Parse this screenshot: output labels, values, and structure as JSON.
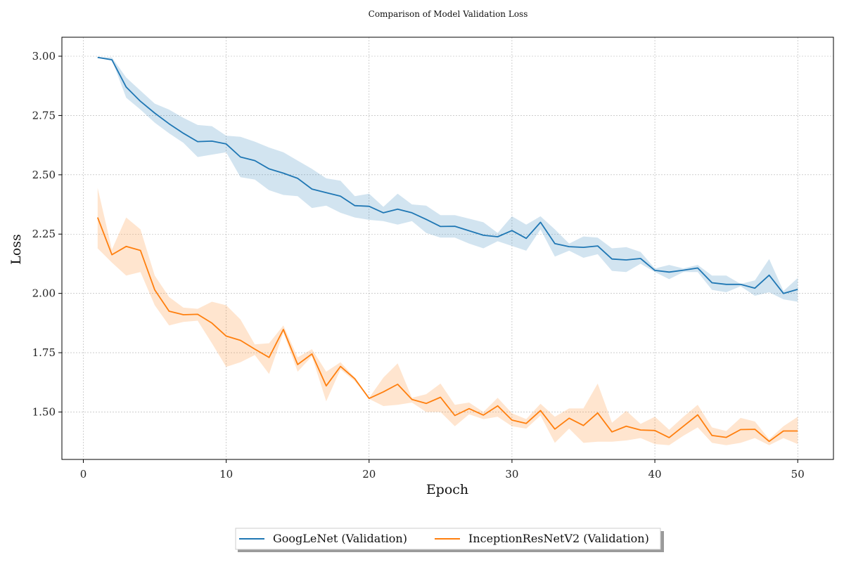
{
  "chart_data": {
    "type": "line",
    "title": "Comparison of Model Validation Loss",
    "xlabel": "Epoch",
    "ylabel": "Loss",
    "xlim": [
      -1.5,
      52.5
    ],
    "ylim": [
      1.3,
      3.08
    ],
    "x_ticks": [
      "0",
      "10",
      "20",
      "30",
      "40",
      "50"
    ],
    "y_ticks": [
      "1.50",
      "1.75",
      "2.00",
      "2.25",
      "2.50",
      "2.75",
      "3.00"
    ],
    "grid": true,
    "legend_position": "bottom-center",
    "x": [
      1,
      2,
      3,
      4,
      5,
      6,
      7,
      8,
      9,
      10,
      11,
      12,
      13,
      14,
      15,
      16,
      17,
      18,
      19,
      20,
      21,
      22,
      23,
      24,
      25,
      26,
      27,
      28,
      29,
      30,
      31,
      32,
      33,
      34,
      35,
      36,
      37,
      38,
      39,
      40,
      41,
      42,
      43,
      44,
      45,
      46,
      47,
      48,
      49,
      50
    ],
    "series": [
      {
        "name": "GoogLeNet (Validation)",
        "color": "#1f77b4",
        "values": [
          2.995,
          2.985,
          2.87,
          2.81,
          2.76,
          2.715,
          2.675,
          2.64,
          2.642,
          2.63,
          2.575,
          2.56,
          2.525,
          2.507,
          2.485,
          2.44,
          2.425,
          2.41,
          2.37,
          2.367,
          2.34,
          2.355,
          2.34,
          2.312,
          2.282,
          2.283,
          2.264,
          2.245,
          2.239,
          2.265,
          2.232,
          2.3,
          2.21,
          2.197,
          2.194,
          2.2,
          2.145,
          2.141,
          2.147,
          2.097,
          2.09,
          2.098,
          2.107,
          2.045,
          2.038,
          2.038,
          2.022,
          2.077,
          2.0,
          2.017
        ],
        "lower": [
          2.995,
          2.985,
          2.825,
          2.775,
          2.72,
          2.675,
          2.635,
          2.575,
          2.585,
          2.595,
          2.49,
          2.48,
          2.435,
          2.415,
          2.41,
          2.36,
          2.37,
          2.34,
          2.32,
          2.31,
          2.305,
          2.29,
          2.305,
          2.255,
          2.235,
          2.235,
          2.21,
          2.19,
          2.22,
          2.2,
          2.18,
          2.27,
          2.155,
          2.18,
          2.15,
          2.165,
          2.095,
          2.09,
          2.125,
          2.09,
          2.06,
          2.09,
          2.09,
          2.015,
          2.005,
          2.03,
          1.99,
          2.005,
          1.975,
          1.965
        ],
        "upper": [
          2.995,
          2.995,
          2.91,
          2.855,
          2.8,
          2.775,
          2.74,
          2.71,
          2.705,
          2.665,
          2.66,
          2.64,
          2.615,
          2.595,
          2.56,
          2.525,
          2.485,
          2.475,
          2.41,
          2.42,
          2.365,
          2.42,
          2.375,
          2.37,
          2.33,
          2.33,
          2.315,
          2.3,
          2.255,
          2.325,
          2.29,
          2.325,
          2.27,
          2.21,
          2.24,
          2.235,
          2.19,
          2.195,
          2.175,
          2.105,
          2.12,
          2.105,
          2.12,
          2.075,
          2.075,
          2.04,
          2.055,
          2.145,
          2.01,
          2.065
        ]
      },
      {
        "name": "InceptionResNetV2 (Validation)",
        "color": "#ff7f0e",
        "values": [
          2.32,
          2.163,
          2.198,
          2.181,
          2.015,
          1.925,
          1.91,
          1.912,
          1.875,
          1.82,
          1.802,
          1.765,
          1.73,
          1.848,
          1.7,
          1.745,
          1.61,
          1.692,
          1.64,
          1.557,
          1.585,
          1.617,
          1.553,
          1.536,
          1.562,
          1.485,
          1.514,
          1.487,
          1.526,
          1.466,
          1.452,
          1.506,
          1.428,
          1.474,
          1.443,
          1.496,
          1.416,
          1.44,
          1.424,
          1.422,
          1.392,
          1.44,
          1.488,
          1.401,
          1.393,
          1.426,
          1.427,
          1.376,
          1.42,
          1.42
        ],
        "lower": [
          2.19,
          2.13,
          2.075,
          2.09,
          1.95,
          1.865,
          1.88,
          1.885,
          1.79,
          1.69,
          1.71,
          1.74,
          1.66,
          1.835,
          1.67,
          1.735,
          1.545,
          1.68,
          1.63,
          1.555,
          1.525,
          1.53,
          1.54,
          1.5,
          1.5,
          1.44,
          1.49,
          1.47,
          1.48,
          1.44,
          1.43,
          1.485,
          1.37,
          1.43,
          1.37,
          1.375,
          1.375,
          1.38,
          1.39,
          1.365,
          1.36,
          1.4,
          1.435,
          1.37,
          1.36,
          1.37,
          1.39,
          1.36,
          1.39,
          1.365
        ],
        "upper": [
          2.445,
          2.185,
          2.32,
          2.27,
          2.075,
          1.985,
          1.94,
          1.935,
          1.965,
          1.95,
          1.89,
          1.785,
          1.79,
          1.865,
          1.73,
          1.765,
          1.67,
          1.71,
          1.645,
          1.56,
          1.645,
          1.705,
          1.56,
          1.575,
          1.62,
          1.53,
          1.54,
          1.5,
          1.56,
          1.495,
          1.47,
          1.535,
          1.48,
          1.515,
          1.515,
          1.62,
          1.455,
          1.505,
          1.45,
          1.48,
          1.425,
          1.48,
          1.53,
          1.435,
          1.42,
          1.475,
          1.46,
          1.385,
          1.44,
          1.48
        ]
      }
    ]
  }
}
